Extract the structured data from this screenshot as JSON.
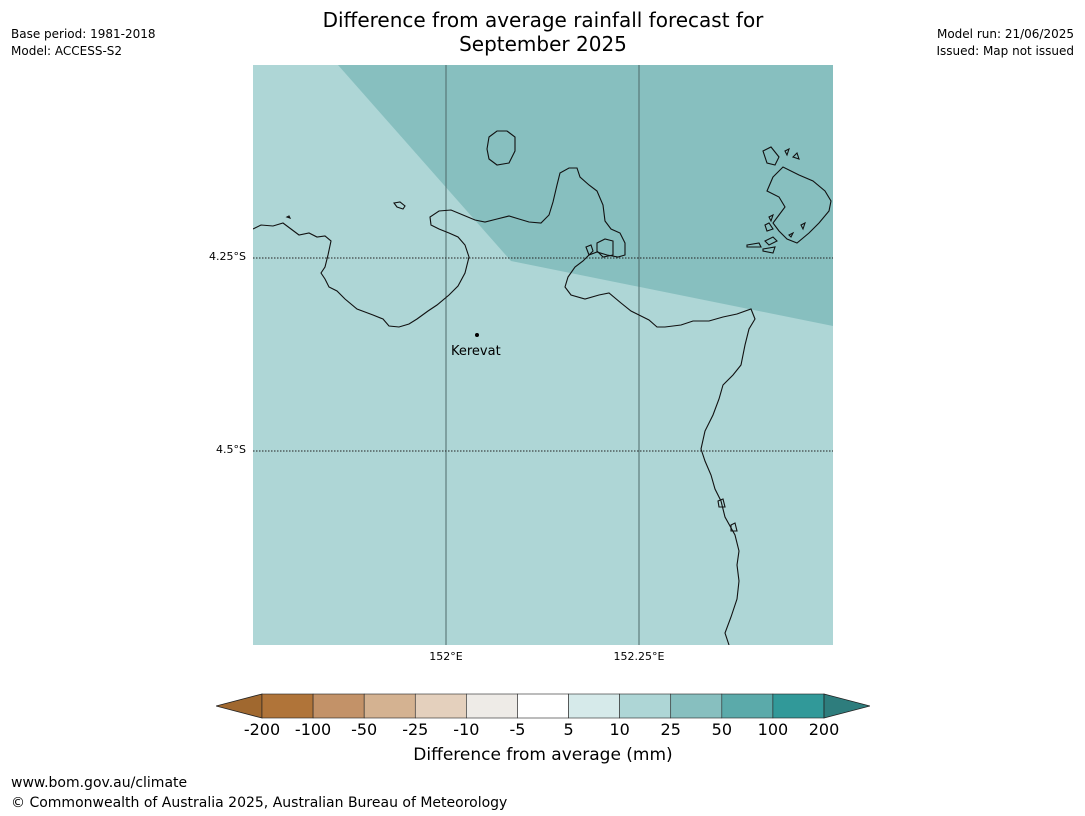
{
  "header": {
    "title_line1": "Difference from average rainfall forecast for",
    "title_line2": "September 2025",
    "base_period": "Base period: 1981-2018",
    "model": "Model: ACCESS-S2",
    "model_run": "Model run: 21/06/2025",
    "issued": "Issued: Map not issued"
  },
  "map": {
    "place": "Kerevat",
    "lat_labels": [
      "4.25°S",
      "4.5°S"
    ],
    "lon_labels": [
      "152°E",
      "152.25°E"
    ],
    "colors": {
      "band_10_25": "#aed6d6",
      "band_25_50": "#87bfbf"
    }
  },
  "colorbar": {
    "label": "Difference from average (mm)",
    "ticks": [
      "-200",
      "-100",
      "-50",
      "-25",
      "-10",
      "-5",
      "5",
      "10",
      "25",
      "50",
      "100",
      "200"
    ],
    "colors": [
      "#a0682f",
      "#b07439",
      "#c39268",
      "#d4b291",
      "#e4d0bd",
      "#eeebe7",
      "#ffffff",
      "#d6eaea",
      "#aed6d6",
      "#87bfbf",
      "#5baaaa",
      "#319999",
      "#2e7d7d"
    ]
  },
  "footer": {
    "url": "www.bom.gov.au/climate",
    "copyright": "© Commonwealth of Australia 2025, Australian Bureau of Meteorology"
  }
}
